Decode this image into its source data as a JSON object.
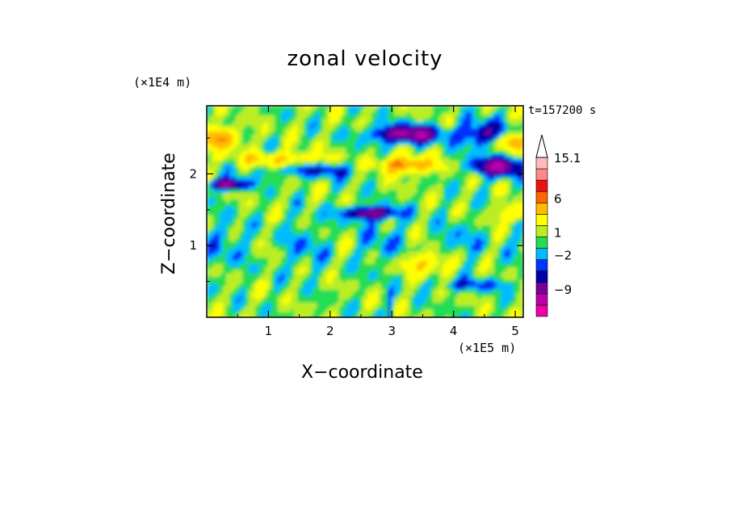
{
  "chart_data": {
    "type": "heatmap",
    "title": "zonal velocity",
    "xlabel": "X−coordinate",
    "ylabel": "Z−coordinate",
    "x_unit": "(×1E5 m)",
    "y_unit": "(×1E4 m)",
    "time_label": "t=157200 s",
    "xlim": [
      0,
      5.13
    ],
    "ylim": [
      0,
      2.95
    ],
    "x_ticks": [
      "1",
      "2",
      "3",
      "4",
      "5"
    ],
    "y_ticks": [
      "1",
      "2"
    ],
    "colorbar": {
      "levels": [
        -12,
        -9,
        -6,
        -4,
        -2,
        -1,
        0,
        1,
        2,
        4,
        6,
        9,
        12,
        15.1
      ],
      "tick_labels": [
        "15.1",
        "6",
        "1",
        "−2",
        "−9"
      ],
      "colors": [
        "#ee00aa",
        "#bb00aa",
        "#770099",
        "#0000aa",
        "#0033ff",
        "#00bbff",
        "#22dd55",
        "#bbee22",
        "#ffff00",
        "#ffbb00",
        "#ff6600",
        "#ee1111",
        "#ff8888",
        "#ffbbbb"
      ]
    },
    "field_features": [
      {
        "value": -6,
        "x": 3.2,
        "y": 2.5
      },
      {
        "value": -6,
        "x": 4.7,
        "y": 2.1
      },
      {
        "value": -6,
        "x": 0.3,
        "y": 1.8
      },
      {
        "value": -6,
        "x": 2.6,
        "y": 1.45
      },
      {
        "value": 4,
        "x": 3.2,
        "y": 2.1
      },
      {
        "value": 4,
        "x": 5.0,
        "y": 2.5
      },
      {
        "value": 4,
        "x": 0.1,
        "y": 2.5
      },
      {
        "value": 4,
        "x": 3.6,
        "y": 0.7
      },
      {
        "value": 0,
        "x": 2.5,
        "y": 0.8
      },
      {
        "value": 1,
        "x": 1.5,
        "y": 0.5
      }
    ]
  }
}
